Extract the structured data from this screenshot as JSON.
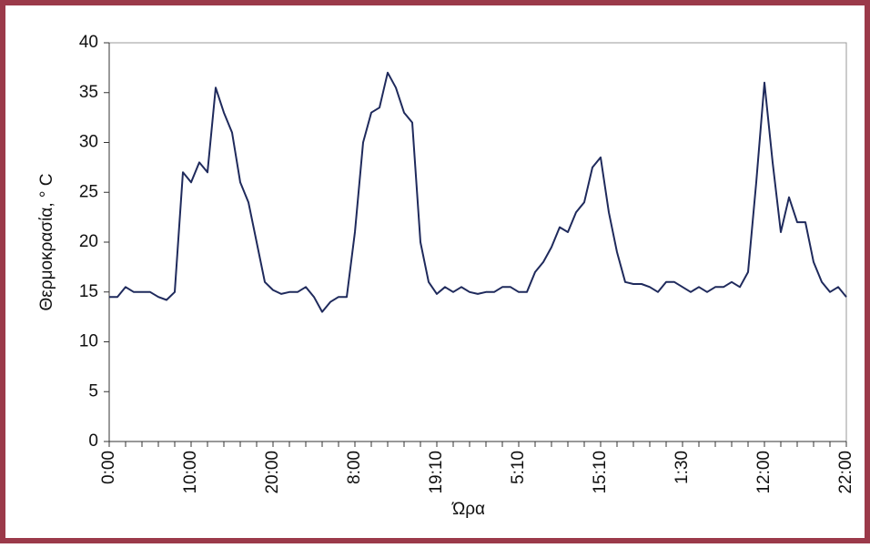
{
  "chart_data": {
    "type": "line",
    "y_label": "Θερμοκρασία, ° C",
    "x_label": "Ώρα",
    "categories": [
      "0:00",
      null,
      null,
      null,
      null,
      null,
      null,
      null,
      null,
      null,
      "10:00",
      null,
      null,
      null,
      null,
      null,
      null,
      null,
      null,
      null,
      "20:00",
      null,
      null,
      null,
      null,
      null,
      null,
      null,
      null,
      null,
      "8:00",
      null,
      null,
      null,
      null,
      null,
      null,
      null,
      null,
      null,
      "19:10",
      null,
      null,
      null,
      null,
      null,
      null,
      null,
      null,
      null,
      "5:10",
      null,
      null,
      null,
      null,
      null,
      null,
      null,
      null,
      null,
      "15:10",
      null,
      null,
      null,
      null,
      null,
      null,
      null,
      null,
      null,
      "1:30",
      null,
      null,
      null,
      null,
      null,
      null,
      null,
      null,
      null,
      "12:00",
      null,
      null,
      null,
      null,
      null,
      null,
      null,
      null,
      null,
      "22:00"
    ],
    "series": [
      {
        "color": "#1f2a5c",
        "values": [
          14.5,
          14.5,
          15.5,
          15,
          15,
          15,
          14.5,
          14.2,
          15,
          27,
          26,
          28,
          27,
          35.5,
          33,
          31,
          26,
          24,
          20,
          16,
          15.2,
          14.8,
          15,
          15,
          15.5,
          14.5,
          13,
          14,
          14.5,
          14.5,
          21,
          30,
          33,
          33.5,
          37,
          35.5,
          33,
          32,
          20,
          16,
          14.8,
          15.5,
          15,
          15.5,
          15,
          14.8,
          15,
          15,
          15.5,
          15.5,
          15,
          15,
          17,
          18,
          19.5,
          21.5,
          21,
          23,
          24,
          27.5,
          28.5,
          23,
          19,
          16,
          15.8,
          15.8,
          15.5,
          15,
          16,
          16,
          15.5,
          15,
          15.5,
          15,
          15.5,
          15.5,
          16,
          15.5,
          17,
          26,
          36,
          28,
          21,
          24.5,
          22,
          22,
          18,
          16,
          15,
          15.5,
          14.5
        ]
      }
    ],
    "ylim": [
      0,
      40
    ],
    "yticks": [
      0,
      5,
      10,
      15,
      20,
      25,
      30,
      35,
      40
    ]
  }
}
